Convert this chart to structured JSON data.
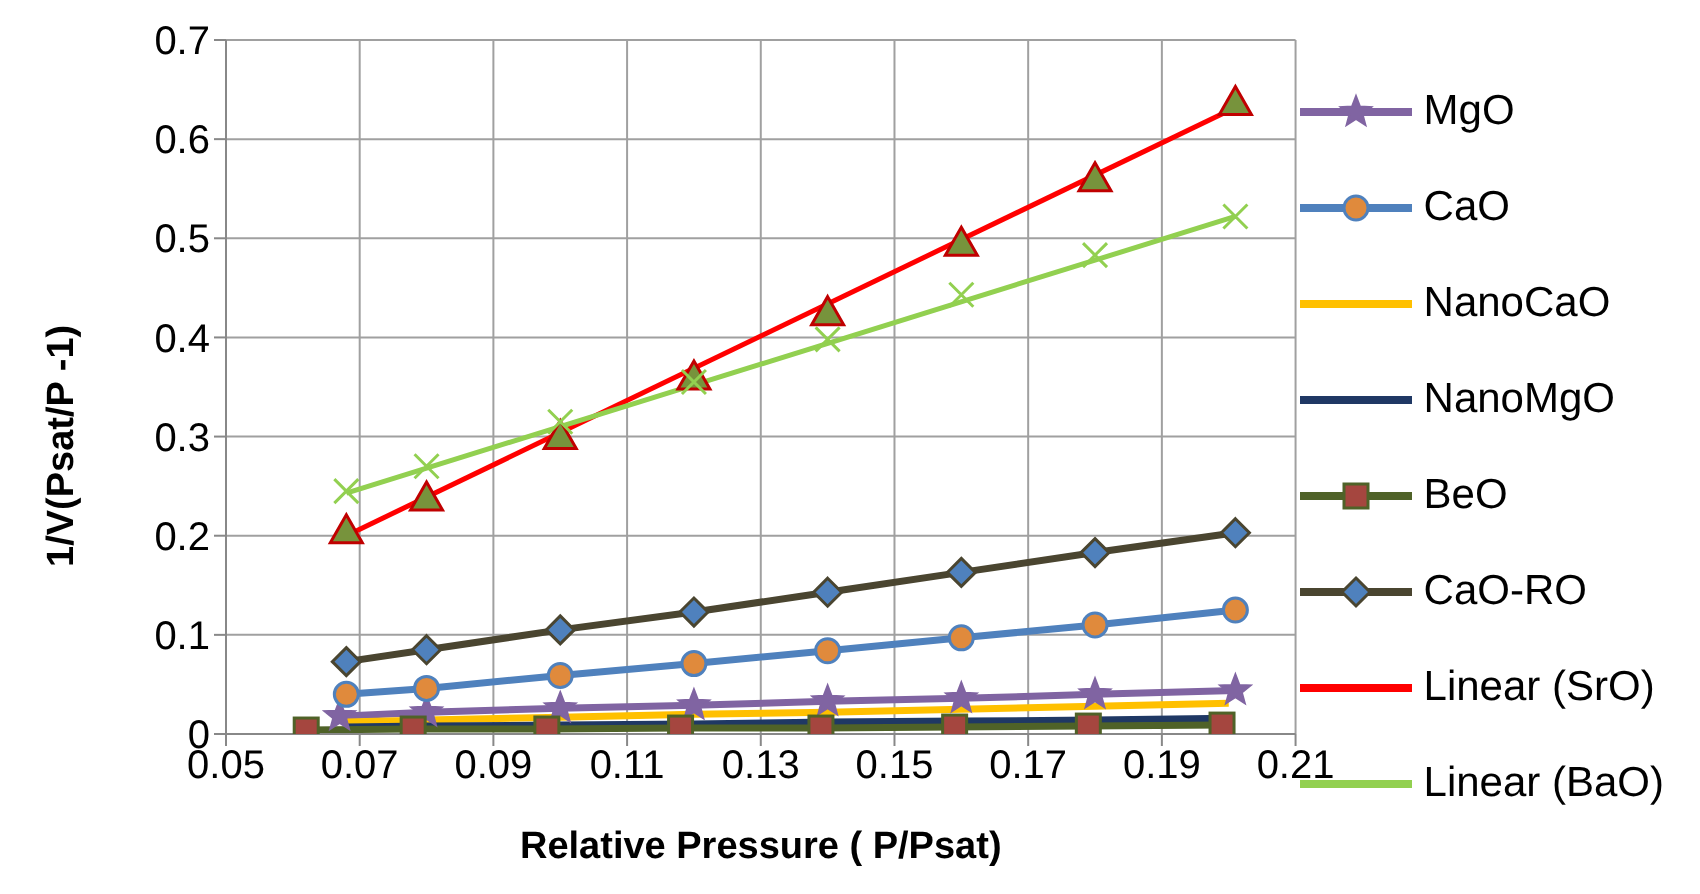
{
  "chart_data": {
    "type": "line",
    "xlabel": "Relative Pressure ( P/Psat)",
    "ylabel": "1/V(Psat/P    -1)",
    "xlim": [
      0.05,
      0.21
    ],
    "xticks": [
      0.05,
      0.07,
      0.09,
      0.11,
      0.13,
      0.15,
      0.17,
      0.19,
      0.21
    ],
    "ylim": [
      0,
      0.7
    ],
    "yticks": [
      0,
      0.1,
      0.2,
      0.3,
      0.4,
      0.5,
      0.6,
      0.7
    ],
    "grid": true,
    "legend": "right",
    "series": [
      {
        "name": "MgO",
        "color": "#8064a2",
        "marker": "star",
        "x": [
          0.067,
          0.08,
          0.1,
          0.12,
          0.14,
          0.16,
          0.18,
          0.201
        ],
        "values": [
          0.018,
          0.022,
          0.026,
          0.029,
          0.033,
          0.036,
          0.04,
          0.044
        ]
      },
      {
        "name": "CaO",
        "color": "#4f81bd",
        "marker": "circle",
        "x": [
          0.068,
          0.08,
          0.1,
          0.12,
          0.14,
          0.16,
          0.18,
          0.201
        ],
        "values": [
          0.04,
          0.046,
          0.059,
          0.071,
          0.084,
          0.097,
          0.11,
          0.125
        ]
      },
      {
        "name": "NanoCaO",
        "color": "#ffc000",
        "marker": "none",
        "x": [
          0.068,
          0.08,
          0.1,
          0.12,
          0.14,
          0.16,
          0.18,
          0.2
        ],
        "values": [
          0.012,
          0.014,
          0.017,
          0.02,
          0.022,
          0.025,
          0.028,
          0.031
        ]
      },
      {
        "name": "NanoMgO",
        "color": "#1f3864",
        "marker": "none",
        "x": [
          0.068,
          0.08,
          0.1,
          0.12,
          0.14,
          0.16,
          0.18,
          0.2
        ],
        "values": [
          0.007,
          0.008,
          0.009,
          0.01,
          0.012,
          0.013,
          0.014,
          0.016
        ]
      },
      {
        "name": "BeO",
        "color": "#4f6228",
        "marker": "square",
        "x": [
          0.062,
          0.078,
          0.098,
          0.118,
          0.139,
          0.159,
          0.179,
          0.199
        ],
        "values": [
          0.004,
          0.005,
          0.005,
          0.006,
          0.006,
          0.007,
          0.008,
          0.009
        ]
      },
      {
        "name": "CaO-RO",
        "color": "#4a4530",
        "marker": "diamond",
        "x": [
          0.068,
          0.08,
          0.1,
          0.12,
          0.14,
          0.16,
          0.18,
          0.201
        ],
        "values": [
          0.073,
          0.085,
          0.105,
          0.123,
          0.143,
          0.163,
          0.183,
          0.203
        ]
      },
      {
        "type": "scatter",
        "color": "#77933c",
        "marker": "triangle",
        "x": [
          0.068,
          0.08,
          0.1,
          0.12,
          0.14,
          0.16,
          0.18,
          0.201
        ],
        "values": [
          0.205,
          0.238,
          0.3,
          0.36,
          0.425,
          0.495,
          0.56,
          0.637
        ]
      },
      {
        "type": "scatter",
        "color": "#92d050",
        "marker": "cross",
        "x": [
          0.068,
          0.08,
          0.1,
          0.12,
          0.14,
          0.16,
          0.18,
          0.201
        ],
        "values": [
          0.245,
          0.27,
          0.315,
          0.355,
          0.398,
          0.443,
          0.483,
          0.522
        ]
      },
      {
        "name": "Linear (SrO)",
        "color": "#ff0000",
        "marker": "none",
        "x": [
          0.068,
          0.201
        ],
        "values": [
          0.2,
          0.632
        ]
      },
      {
        "name": "Linear (BaO)",
        "color": "#92d050",
        "marker": "none",
        "x": [
          0.068,
          0.201
        ],
        "values": [
          0.243,
          0.522
        ]
      }
    ]
  }
}
